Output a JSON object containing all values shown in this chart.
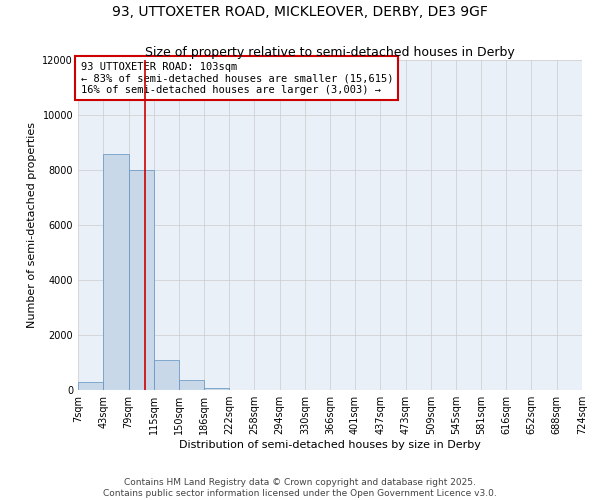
{
  "title": "93, UTTOXETER ROAD, MICKLEOVER, DERBY, DE3 9GF",
  "subtitle": "Size of property relative to semi-detached houses in Derby",
  "xlabel": "Distribution of semi-detached houses by size in Derby",
  "ylabel": "Number of semi-detached properties",
  "footer_line1": "Contains HM Land Registry data © Crown copyright and database right 2025.",
  "footer_line2": "Contains public sector information licensed under the Open Government Licence v3.0.",
  "property_size": 103,
  "annotation_title": "93 UTTOXETER ROAD: 103sqm",
  "annotation_line1": "← 83% of semi-detached houses are smaller (15,615)",
  "annotation_line2": "16% of semi-detached houses are larger (3,003) →",
  "bin_edges": [
    7,
    43,
    79,
    115,
    150,
    186,
    222,
    258,
    294,
    330,
    366,
    401,
    437,
    473,
    509,
    545,
    581,
    616,
    652,
    688,
    724
  ],
  "bin_labels": [
    "7sqm",
    "43sqm",
    "79sqm",
    "115sqm",
    "150sqm",
    "186sqm",
    "222sqm",
    "258sqm",
    "294sqm",
    "330sqm",
    "366sqm",
    "401sqm",
    "437sqm",
    "473sqm",
    "509sqm",
    "545sqm",
    "581sqm",
    "616sqm",
    "652sqm",
    "688sqm",
    "724sqm"
  ],
  "bar_heights": [
    280,
    8600,
    8000,
    1100,
    350,
    80,
    10,
    0,
    0,
    0,
    0,
    0,
    0,
    0,
    0,
    0,
    0,
    0,
    0,
    0
  ],
  "bar_color": "#c8d8e8",
  "bar_edge_color": "#6090c0",
  "vline_color": "#cc0000",
  "vline_x": 103,
  "ylim": [
    0,
    12000
  ],
  "yticks": [
    0,
    2000,
    4000,
    6000,
    8000,
    10000,
    12000
  ],
  "background_color": "#ffffff",
  "grid_color": "#cccccc",
  "annotation_box_color": "#cc0000",
  "title_fontsize": 10,
  "subtitle_fontsize": 9,
  "axis_label_fontsize": 8,
  "tick_fontsize": 7,
  "annotation_fontsize": 7.5,
  "footer_fontsize": 6.5
}
